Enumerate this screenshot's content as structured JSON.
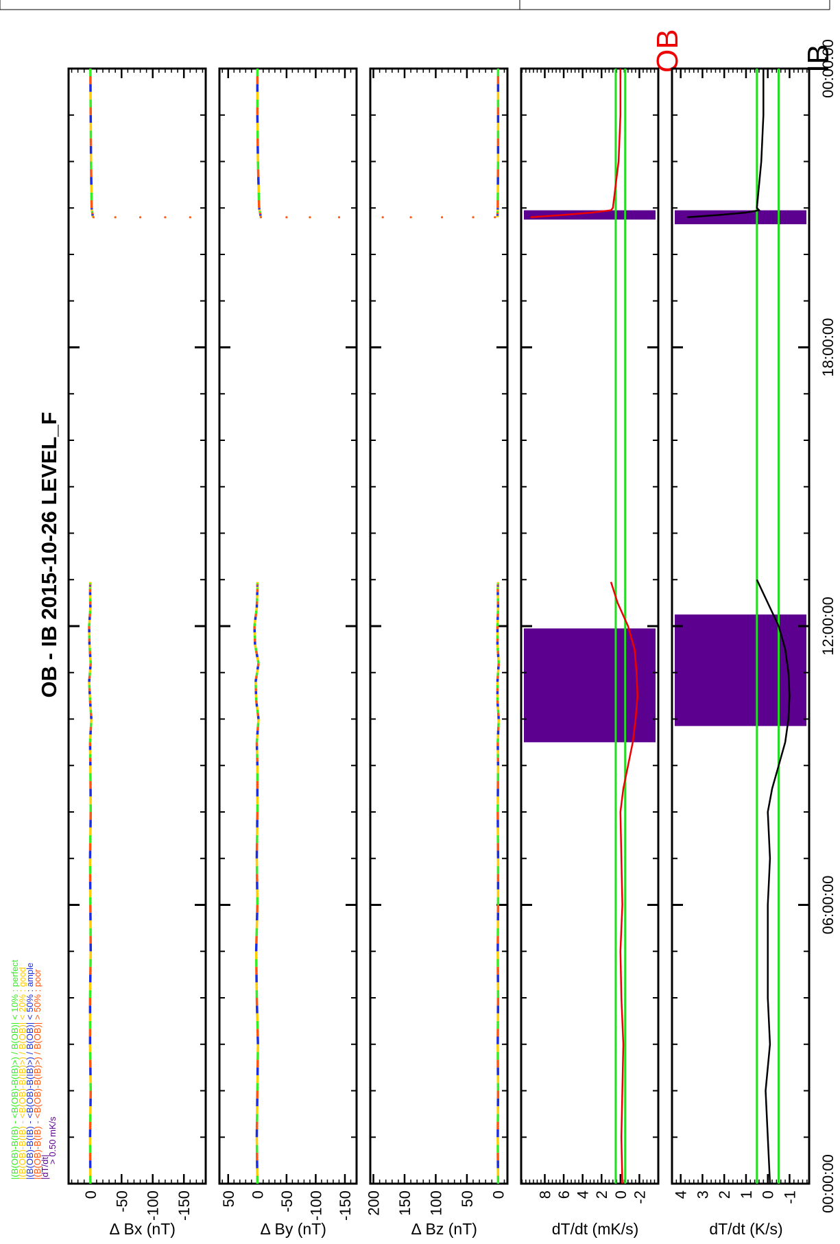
{
  "chart_data": {
    "type": "line",
    "title": "OB - IB  2015-10-26 LEVEL_F",
    "time_axis": {
      "range_hours": [
        0,
        24
      ],
      "major_ticks_hours": [
        0,
        6,
        12,
        18,
        24
      ],
      "tick_labels": [
        "00:00:00",
        "06:00:00",
        "12:00:00",
        "18:00:00",
        "00:00:00"
      ]
    },
    "legend": [
      {
        "text": "|(B(OB)-B(IB) - <B(OB)-B(IB)>) / B(OB)| < 10% : perfect",
        "color": "#33ee22"
      },
      {
        "text": "|(B(OB)-B(IB) - <B(OB)-B(IB)>) / B(OB)| < 20% : good",
        "color": "#ffcc00"
      },
      {
        "text": "|(B(OB)-B(IB) - <B(OB)-B(IB)>) / B(OB)| < 50% : ample",
        "color": "#1a2ee0"
      },
      {
        "text": "|(B(OB)-B(IB) - <B(OB)-B(IB)>) / B(OB)| > 50% : poor",
        "color": "#ff5511"
      },
      {
        "text": "|dT/dt|",
        "color": "#5c0090"
      },
      {
        "text": "> 0.50 mK/s",
        "color": "#5c0090"
      }
    ],
    "data_gaps_hours": [
      [
        12.95,
        20.8
      ]
    ],
    "panels": [
      {
        "name": "dBx",
        "ylabel": "∆   Bx (nT)",
        "ylim": [
          -185,
          35
        ],
        "yticks": [
          0,
          -50,
          -100,
          -150
        ],
        "ytick_labels": [
          "0",
          "-50",
          "-100",
          "-150"
        ],
        "segments": [
          {
            "x": [
              0,
              1,
              2,
              3,
              4,
              5,
              6,
              7,
              8,
              9,
              9.5,
              10,
              10.4,
              10.8,
              11.2,
              11.6,
              12,
              12.4,
              12.8,
              12.95
            ],
            "y": [
              0,
              0.5,
              -0.5,
              0.5,
              0.5,
              -0.5,
              0,
              0.5,
              -0.5,
              0,
              0.5,
              -1.5,
              0.5,
              2,
              -0.5,
              1.5,
              2,
              0,
              0.5,
              0
            ]
          },
          {
            "x": [
              20.8,
              21,
              22,
              23,
              24
            ],
            "y": [
              -4,
              -2,
              -1,
              -0.5,
              0
            ]
          }
        ],
        "spikes": [
          {
            "x": 20.8,
            "y": [
              -5,
              -40,
              -80,
              -120,
              -160
            ]
          }
        ]
      },
      {
        "name": "dBy",
        "ylabel": "∆   By (nT)",
        "ylim": [
          -170,
          65
        ],
        "yticks": [
          50,
          0,
          -50,
          -100,
          -150
        ],
        "ytick_labels": [
          "50",
          "0",
          "-50",
          "-100",
          "-150"
        ],
        "segments": [
          {
            "x": [
              0,
              1,
              2,
              3,
              4,
              5,
              6,
              7,
              8,
              9,
              9.5,
              10,
              10.4,
              10.8,
              11.2,
              11.6,
              12,
              12.4,
              12.8,
              12.95
            ],
            "y": [
              0,
              1,
              0,
              -1,
              1,
              2,
              0,
              1,
              0,
              0,
              1,
              -2,
              2,
              3,
              -2,
              4,
              5,
              1,
              0,
              0
            ]
          },
          {
            "x": [
              20.8,
              21,
              22,
              23,
              24
            ],
            "y": [
              -6,
              -3,
              -1,
              0,
              0
            ]
          }
        ],
        "spikes": [
          {
            "x": 20.8,
            "y": [
              -6,
              -50,
              -90,
              -140
            ]
          }
        ]
      },
      {
        "name": "dBz",
        "ylabel": "∆   Bz (nT)",
        "ylim": [
          -15,
          205
        ],
        "yticks": [
          200,
          150,
          100,
          50,
          0
        ],
        "ytick_labels": [
          "200",
          "150",
          "100",
          "50",
          "0"
        ],
        "segments": [
          {
            "x": [
              0,
              1,
              2,
              3,
              4,
              5,
              6,
              7,
              8,
              9,
              9.5,
              10,
              10.4,
              10.8,
              11.2,
              11.6,
              12,
              12.4,
              12.8,
              12.95
            ],
            "y": [
              0,
              0.5,
              0,
              0.5,
              0,
              0.5,
              0,
              0,
              0.5,
              0,
              0.5,
              -1,
              1,
              1,
              -1,
              1,
              1,
              0,
              0.5,
              0
            ]
          },
          {
            "x": [
              20.8,
              21,
              22,
              23,
              24
            ],
            "y": [
              1,
              0.5,
              0,
              0,
              0
            ]
          }
        ],
        "spikes": [
          {
            "x": 20.8,
            "y": [
              5,
              40,
              90,
              140,
              185
            ]
          }
        ]
      },
      {
        "name": "dTdt_OB",
        "ylabel": "dT/dt (mK/s)",
        "tag": "OB",
        "tag_color": "#ee0000",
        "ylim": [
          -4,
          10.5
        ],
        "yticks": [
          8,
          6,
          4,
          2,
          0,
          -2
        ],
        "ytick_labels": [
          "8",
          "6",
          "4",
          "2",
          "0",
          "-2"
        ],
        "threshold_lines": [
          0.5,
          -0.5
        ],
        "threshold_color": "#22dd22",
        "highlight_color": "#5c0090",
        "highlight_spans_hours": [
          [
            9.5,
            11.95
          ],
          [
            20.75,
            20.95
          ]
        ],
        "line_color": "#ee0000",
        "segments": [
          {
            "x": [
              0,
              1,
              2,
              3,
              4,
              5,
              6,
              7,
              8,
              8.5,
              9,
              9.5,
              10,
              10.5,
              11,
              11.5,
              12,
              12.5,
              12.95
            ],
            "y": [
              -0.2,
              -0.1,
              -0.2,
              -0.3,
              -0.1,
              0,
              -0.2,
              -0.1,
              0,
              -0.3,
              -0.8,
              -1.3,
              -1.6,
              -1.8,
              -1.7,
              -1.5,
              -0.8,
              0.3,
              1.0
            ]
          },
          {
            "x": [
              20.8,
              20.85,
              20.9,
              20.95,
              21,
              21.5,
              22,
              23,
              24
            ],
            "y": [
              9.5,
              6,
              3,
              1,
              0.8,
              0.5,
              0.2,
              0,
              0
            ]
          }
        ]
      },
      {
        "name": "dTdt_IB",
        "ylabel": "dT/dt (K/s)",
        "tag": "IB",
        "tag_color": "#000000",
        "ylim": [
          -1.9,
          4.4
        ],
        "yticks": [
          4,
          3,
          2,
          1,
          0,
          -1
        ],
        "ytick_labels": [
          "4",
          "3",
          "2",
          "1",
          "0",
          "-1"
        ],
        "threshold_lines": [
          0.5,
          -0.5
        ],
        "threshold_color": "#22dd22",
        "highlight_color": "#5c0090",
        "highlight_spans_hours": [
          [
            9.85,
            12.25
          ],
          [
            20.65,
            20.95
          ]
        ],
        "line_color": "#000000",
        "segments": [
          {
            "x": [
              0,
              1,
              2,
              3,
              4,
              5,
              6,
              7,
              8,
              8.5,
              9,
              9.5,
              10,
              10.5,
              11,
              11.5,
              12,
              12.5,
              13
            ],
            "y": [
              -0.1,
              0,
              0.1,
              -0.1,
              0,
              0,
              0,
              -0.1,
              0,
              -0.2,
              -0.5,
              -0.8,
              -0.95,
              -1.0,
              -0.95,
              -0.8,
              -0.5,
              0,
              0.5
            ]
          },
          {
            "x": [
              20.8,
              20.85,
              20.9,
              20.95,
              21,
              21.5,
              22,
              23,
              24
            ],
            "y": [
              3.7,
              2.2,
              1.0,
              0.4,
              0.5,
              0.4,
              0.3,
              0.2,
              0.2
            ]
          }
        ]
      }
    ]
  }
}
